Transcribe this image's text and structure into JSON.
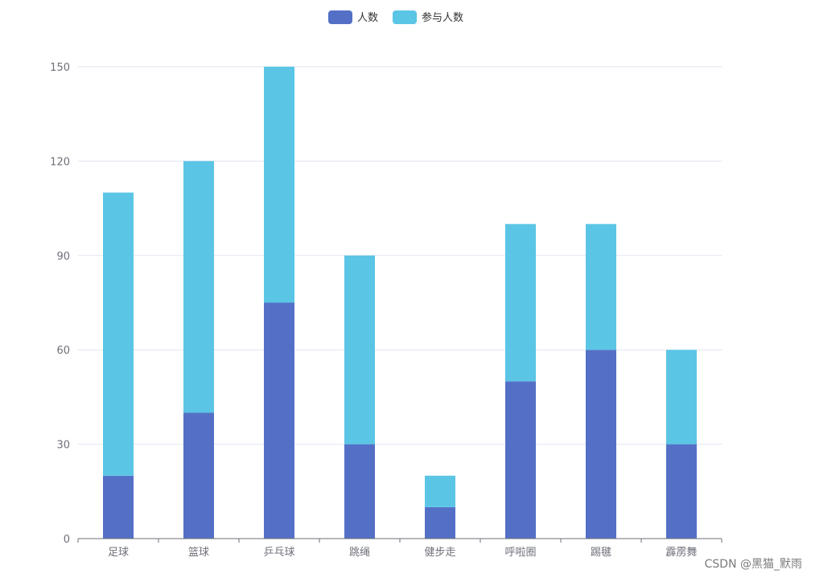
{
  "chart_data": {
    "type": "bar",
    "stacked": true,
    "categories": [
      "足球",
      "篮球",
      "乒乓球",
      "跳绳",
      "健步走",
      "呼啦圈",
      "踢毽",
      "霹雳舞"
    ],
    "series": [
      {
        "name": "人数",
        "color": "#5470c6",
        "values": [
          20,
          40,
          75,
          30,
          10,
          50,
          60,
          30
        ]
      },
      {
        "name": "参与人数",
        "color": "#5bc5e6",
        "values": [
          90,
          80,
          75,
          60,
          10,
          50,
          40,
          30
        ]
      }
    ],
    "ylim": [
      0,
      150
    ],
    "yticks": [
      0,
      30,
      60,
      90,
      120,
      150
    ],
    "grid": true,
    "legend": "top-center",
    "title": "",
    "xlabel": "",
    "ylabel": ""
  },
  "watermark": "CSDN @黑猫_默雨"
}
